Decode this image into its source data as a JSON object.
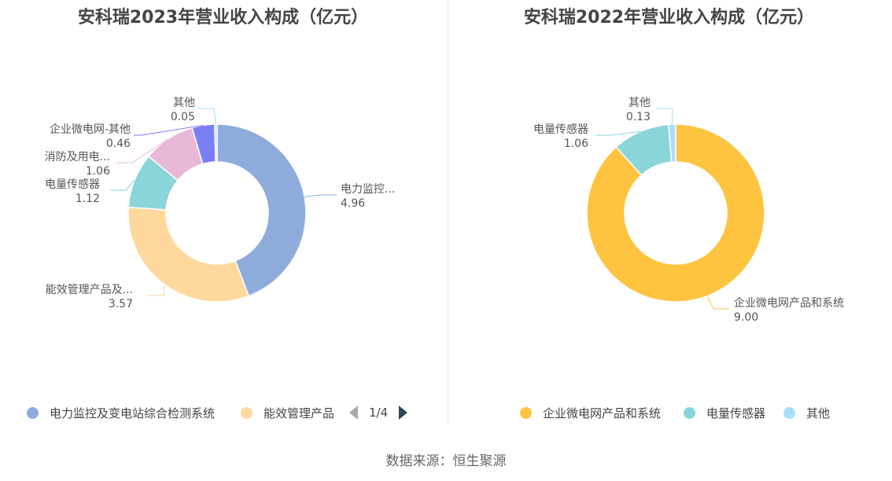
{
  "source_label": "数据来源：恒生聚源",
  "chart_data": [
    {
      "type": "pie",
      "title": "安科瑞2023年营业收入构成（亿元）",
      "slices": [
        {
          "label": "电力监控...",
          "value": 4.96,
          "value_text": "4.96",
          "color": "#8eacdb"
        },
        {
          "label": "能效管理产品及...",
          "value": 3.57,
          "value_text": "3.57",
          "color": "#fed89c"
        },
        {
          "label": "电量传感器",
          "value": 1.12,
          "value_text": "1.12",
          "color": "#89d5d9"
        },
        {
          "label": "消防及用电...",
          "value": 1.06,
          "value_text": "1.06",
          "color": "#e8b8d9"
        },
        {
          "label": "企业微电网-其他",
          "value": 0.46,
          "value_text": "0.46",
          "color": "#7b7ef5"
        },
        {
          "label": "其他",
          "value": 0.05,
          "value_text": "0.05",
          "color": "#a8defa"
        }
      ],
      "legend": {
        "items": [
          {
            "label": "电力监控及变电站综合检测系统",
            "color": "#8eacdb"
          },
          {
            "label": "能效管理产品",
            "color": "#fed89c"
          }
        ],
        "page_text": "1/4"
      }
    },
    {
      "type": "pie",
      "title": "安科瑞2022年营业收入构成（亿元）",
      "slices": [
        {
          "label": "企业微电网产品和系统",
          "value": 9.0,
          "value_text": "9.00",
          "color": "#fec43f"
        },
        {
          "label": "电量传感器",
          "value": 1.06,
          "value_text": "1.06",
          "color": "#89d5d9"
        },
        {
          "label": "其他",
          "value": 0.13,
          "value_text": "0.13",
          "color": "#a8defa"
        }
      ],
      "legend": {
        "items": [
          {
            "label": "企业微电网产品和系统",
            "color": "#fec43f"
          },
          {
            "label": "电量传感器",
            "color": "#89d5d9"
          },
          {
            "label": "其他",
            "color": "#a8defa"
          }
        ]
      }
    }
  ]
}
